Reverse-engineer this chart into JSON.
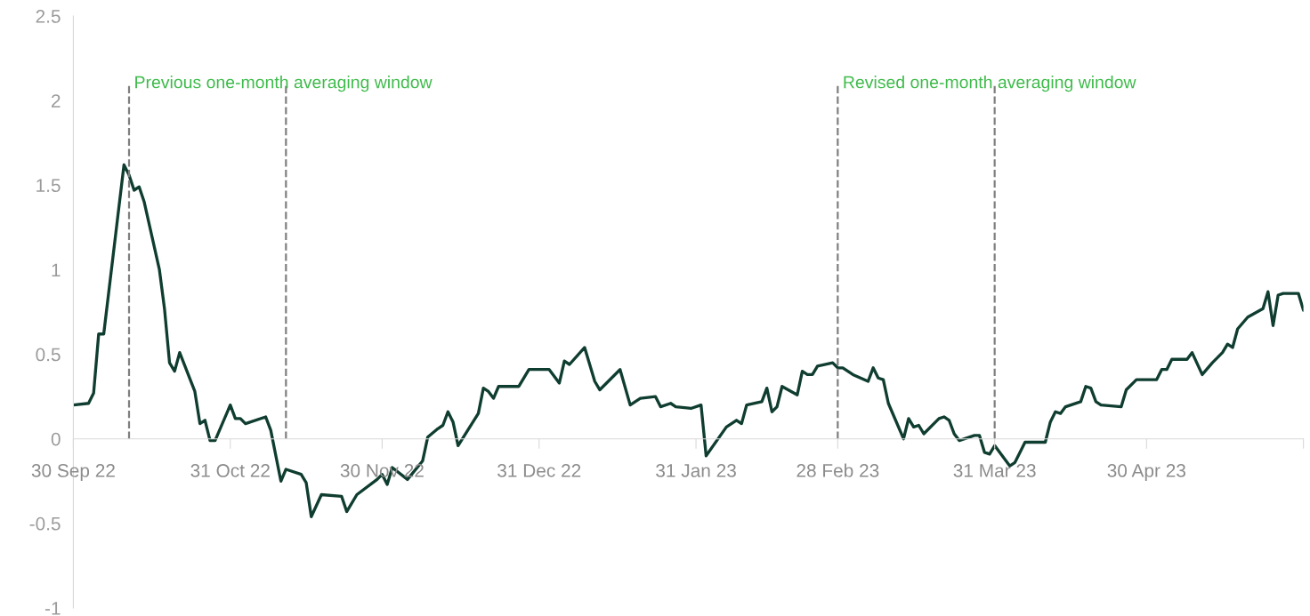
{
  "chart_data": {
    "type": "line",
    "x": [
      "2022-09-30",
      "2022-10-03",
      "2022-10-04",
      "2022-10-05",
      "2022-10-06",
      "2022-10-10",
      "2022-10-11",
      "2022-10-12",
      "2022-10-13",
      "2022-10-14",
      "2022-10-17",
      "2022-10-18",
      "2022-10-19",
      "2022-10-20",
      "2022-10-21",
      "2022-10-24",
      "2022-10-25",
      "2022-10-26",
      "2022-10-27",
      "2022-10-28",
      "2022-10-31",
      "2022-11-01",
      "2022-11-02",
      "2022-11-03",
      "2022-11-07",
      "2022-11-08",
      "2022-11-10",
      "2022-11-11",
      "2022-11-14",
      "2022-11-15",
      "2022-11-16",
      "2022-11-18",
      "2022-11-22",
      "2022-11-23",
      "2022-11-25",
      "2022-11-29",
      "2022-11-30",
      "2022-12-01",
      "2022-12-02",
      "2022-12-05",
      "2022-12-08",
      "2022-12-09",
      "2022-12-11",
      "2022-12-12",
      "2022-12-13",
      "2022-12-14",
      "2022-12-15",
      "2022-12-19",
      "2022-12-20",
      "2022-12-21",
      "2022-12-22",
      "2022-12-23",
      "2022-12-27",
      "2022-12-29",
      "2023-01-02",
      "2023-01-04",
      "2023-01-05",
      "2023-01-06",
      "2023-01-09",
      "2023-01-11",
      "2023-01-12",
      "2023-01-16",
      "2023-01-18",
      "2023-01-20",
      "2023-01-23",
      "2023-01-24",
      "2023-01-26",
      "2023-01-27",
      "2023-01-30",
      "2023-02-01",
      "2023-02-02",
      "2023-02-06",
      "2023-02-08",
      "2023-02-09",
      "2023-02-10",
      "2023-02-13",
      "2023-02-14",
      "2023-02-15",
      "2023-02-16",
      "2023-02-17",
      "2023-02-20",
      "2023-02-21",
      "2023-02-22",
      "2023-02-23",
      "2023-02-24",
      "2023-02-27",
      "2023-02-28",
      "2023-03-01",
      "2023-03-03",
      "2023-03-06",
      "2023-03-07",
      "2023-03-08",
      "2023-03-09",
      "2023-03-10",
      "2023-03-13",
      "2023-03-14",
      "2023-03-15",
      "2023-03-16",
      "2023-03-17",
      "2023-03-20",
      "2023-03-21",
      "2023-03-22",
      "2023-03-23",
      "2023-03-24",
      "2023-03-27",
      "2023-03-28",
      "2023-03-29",
      "2023-03-30",
      "2023-03-31",
      "2023-04-03",
      "2023-04-04",
      "2023-04-06",
      "2023-04-10",
      "2023-04-11",
      "2023-04-12",
      "2023-04-13",
      "2023-04-14",
      "2023-04-17",
      "2023-04-18",
      "2023-04-19",
      "2023-04-20",
      "2023-04-21",
      "2023-04-25",
      "2023-04-26",
      "2023-04-28",
      "2023-04-29",
      "2023-05-02",
      "2023-05-03",
      "2023-05-04",
      "2023-05-05",
      "2023-05-08",
      "2023-05-09",
      "2023-05-11",
      "2023-05-13",
      "2023-05-15",
      "2023-05-16",
      "2023-05-17",
      "2023-05-18",
      "2023-05-20",
      "2023-05-23",
      "2023-05-24",
      "2023-05-25",
      "2023-05-26",
      "2023-05-27",
      "2023-05-30",
      "2023-05-31"
    ],
    "series": [
      {
        "color": "#0f3d30",
        "values": [
          0.2,
          0.21,
          0.27,
          0.62,
          0.62,
          1.62,
          1.56,
          1.47,
          1.49,
          1.4,
          1.0,
          0.77,
          0.45,
          0.4,
          0.51,
          0.28,
          0.09,
          0.11,
          -0.01,
          -0.01,
          0.2,
          0.12,
          0.12,
          0.09,
          0.13,
          0.05,
          -0.25,
          -0.18,
          -0.21,
          -0.26,
          -0.46,
          -0.33,
          -0.34,
          -0.43,
          -0.33,
          -0.24,
          -0.21,
          -0.27,
          -0.17,
          -0.24,
          -0.13,
          0.01,
          0.06,
          0.08,
          0.16,
          0.1,
          -0.04,
          0.15,
          0.3,
          0.28,
          0.24,
          0.31,
          0.31,
          0.41,
          0.41,
          0.33,
          0.46,
          0.44,
          0.54,
          0.34,
          0.29,
          0.41,
          0.2,
          0.24,
          0.25,
          0.19,
          0.21,
          0.19,
          0.18,
          0.2,
          -0.1,
          0.07,
          0.11,
          0.09,
          0.2,
          0.22,
          0.3,
          0.16,
          0.19,
          0.31,
          0.26,
          0.4,
          0.38,
          0.38,
          0.43,
          0.45,
          0.42,
          0.42,
          0.38,
          0.34,
          0.42,
          0.36,
          0.35,
          0.21,
          0.0,
          0.12,
          0.07,
          0.08,
          0.03,
          0.12,
          0.13,
          0.11,
          0.03,
          -0.01,
          0.02,
          0.02,
          -0.08,
          -0.09,
          -0.04,
          -0.16,
          -0.14,
          -0.02,
          -0.02,
          0.1,
          0.16,
          0.15,
          0.19,
          0.22,
          0.31,
          0.3,
          0.22,
          0.2,
          0.19,
          0.29,
          0.35,
          0.35,
          0.35,
          0.41,
          0.41,
          0.47,
          0.47,
          0.51,
          0.38,
          0.45,
          0.51,
          0.56,
          0.54,
          0.65,
          0.72,
          0.77,
          0.87,
          0.67,
          0.85,
          0.86,
          0.86,
          0.76
        ]
      }
    ],
    "xlim": [
      "2022-09-30",
      "2023-05-31"
    ],
    "xticks": [
      {
        "value": "2022-09-30",
        "label": "30 Sep 22"
      },
      {
        "value": "2022-10-31",
        "label": "31 Oct 22"
      },
      {
        "value": "2022-11-30",
        "label": "30 Nov 22"
      },
      {
        "value": "2022-12-31",
        "label": "31 Dec 22"
      },
      {
        "value": "2023-01-31",
        "label": "31 Jan 23"
      },
      {
        "value": "2023-02-28",
        "label": "28 Feb 23"
      },
      {
        "value": "2023-03-31",
        "label": "31 Mar 23"
      },
      {
        "value": "2023-04-30",
        "label": "30 Apr 23"
      },
      {
        "value": "2023-05-31",
        "label": null
      }
    ],
    "ylim": [
      -1,
      2.5
    ],
    "yticks": [
      -1,
      -0.5,
      0,
      0.5,
      1,
      1.5,
      2,
      2.5
    ],
    "ref_lines": [
      {
        "axis": "x",
        "value": "2022-10-11",
        "color": "#7f7f7f",
        "line_style": "dashed"
      },
      {
        "axis": "x",
        "value": "2022-11-11",
        "color": "#7f7f7f",
        "line_style": "dashed"
      },
      {
        "axis": "x",
        "value": "2023-02-28",
        "color": "#7f7f7f",
        "line_style": "dashed"
      },
      {
        "axis": "x",
        "value": "2023-03-31",
        "color": "#7f7f7f",
        "line_style": "dashed"
      }
    ],
    "annotations": [
      {
        "text": "Previous one-month averaging window",
        "x": "2022-10-11",
        "y": 2.1
      },
      {
        "text": "Revised one-month averaging window",
        "x": "2023-02-28",
        "y": 2.1
      }
    ],
    "grid": false,
    "marker": "none",
    "line_style": "solid"
  }
}
